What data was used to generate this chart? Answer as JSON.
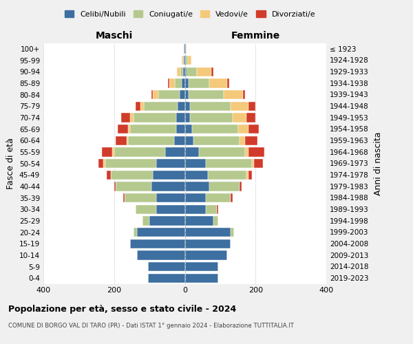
{
  "age_groups": [
    "0-4",
    "5-9",
    "10-14",
    "15-19",
    "20-24",
    "25-29",
    "30-34",
    "35-39",
    "40-44",
    "45-49",
    "50-54",
    "55-59",
    "60-64",
    "65-69",
    "70-74",
    "75-79",
    "80-84",
    "85-89",
    "90-94",
    "95-99",
    "100+"
  ],
  "birth_years": [
    "2019-2023",
    "2014-2018",
    "2009-2013",
    "2004-2008",
    "1999-2003",
    "1994-1998",
    "1989-1993",
    "1984-1988",
    "1979-1983",
    "1974-1978",
    "1969-1973",
    "1964-1968",
    "1959-1963",
    "1954-1958",
    "1949-1953",
    "1944-1948",
    "1939-1943",
    "1934-1938",
    "1929-1933",
    "1924-1928",
    "≤ 1923"
  ],
  "colors": {
    "celibi": "#3d6fa0",
    "coniugati": "#b5c98e",
    "vedovi": "#f5c97a",
    "divorziati": "#d13b2a"
  },
  "maschi": {
    "celibi": [
      105,
      105,
      135,
      155,
      135,
      100,
      80,
      80,
      95,
      90,
      80,
      55,
      30,
      25,
      25,
      20,
      15,
      8,
      5,
      3,
      2
    ],
    "coniugati": [
      0,
      0,
      0,
      0,
      10,
      20,
      60,
      90,
      100,
      120,
      145,
      145,
      130,
      130,
      120,
      95,
      60,
      20,
      8,
      2,
      0
    ],
    "vedovi": [
      0,
      0,
      0,
      0,
      0,
      0,
      0,
      0,
      0,
      0,
      5,
      5,
      5,
      5,
      10,
      10,
      15,
      15,
      10,
      3,
      0
    ],
    "divorziati": [
      0,
      0,
      0,
      0,
      0,
      0,
      0,
      5,
      5,
      10,
      15,
      30,
      30,
      30,
      25,
      15,
      5,
      5,
      0,
      0,
      0
    ]
  },
  "femmine": {
    "nubili": [
      95,
      95,
      120,
      130,
      130,
      80,
      60,
      60,
      70,
      65,
      60,
      40,
      25,
      20,
      15,
      15,
      10,
      10,
      5,
      3,
      2
    ],
    "coniugate": [
      0,
      0,
      0,
      0,
      10,
      15,
      30,
      70,
      85,
      110,
      130,
      130,
      130,
      130,
      120,
      115,
      100,
      60,
      30,
      5,
      0
    ],
    "vedove": [
      0,
      0,
      0,
      0,
      0,
      0,
      0,
      0,
      0,
      5,
      5,
      10,
      15,
      30,
      40,
      50,
      55,
      50,
      40,
      10,
      2
    ],
    "divorziate": [
      0,
      0,
      0,
      0,
      0,
      0,
      5,
      5,
      5,
      10,
      25,
      45,
      35,
      30,
      25,
      20,
      5,
      5,
      5,
      0,
      0
    ]
  },
  "xlim": 400,
  "title": "Popolazione per età, sesso e stato civile - 2024",
  "subtitle": "COMUNE DI BORGO VAL DI TARO (PR) - Dati ISTAT 1° gennaio 2024 - Elaborazione TUTTITALIA.IT",
  "xlabel_left": "Maschi",
  "xlabel_right": "Femmine",
  "ylabel": "Fasce di età",
  "ylabel_right": "Anni di nascita",
  "legend_labels": [
    "Celibi/Nubili",
    "Coniugati/e",
    "Vedovi/e",
    "Divorziati/e"
  ],
  "bg_color": "#f0f0f0",
  "plot_bg": "#ffffff"
}
